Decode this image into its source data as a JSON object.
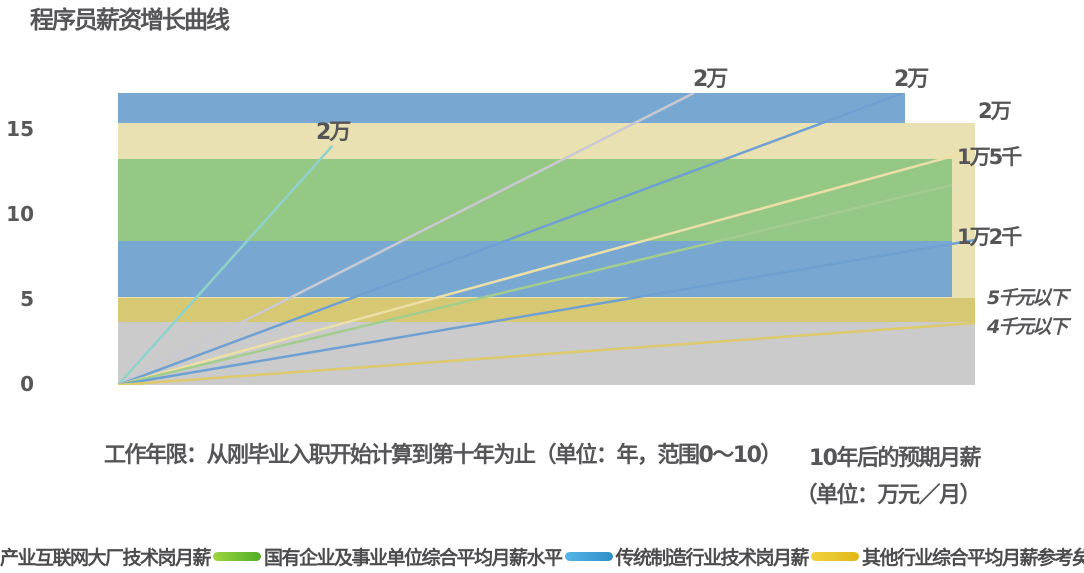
{
  "title": "程序员薪资增长曲线",
  "y_axis": {
    "ticks": [
      "15",
      "10",
      "5",
      "0"
    ]
  },
  "x_axis": {
    "label_long": "工作年限：从刚毕业入职开始计算到第十年为止（单位：年，范围0～10）",
    "right_label_line1": "10年后的预期月薪",
    "right_label_line2": "（单位：万元／月）"
  },
  "point_labels": [
    {
      "text": "2万"
    },
    {
      "text": "2万"
    },
    {
      "text": "2万"
    }
  ],
  "band_labels": [
    {
      "text": "2万"
    },
    {
      "text": "1万5千"
    },
    {
      "text": "1万2千"
    },
    {
      "text": "5千元以下"
    },
    {
      "text": "4千元以下"
    }
  ],
  "legend": {
    "items": [
      {
        "label": "产业互联网大厂技术岗月薪",
        "color_from": "#9ed63f",
        "color_to": "#4fae27"
      },
      {
        "label": "国有企业及事业单位综合平均月薪水平",
        "color_from": "#56b6e8",
        "color_to": "#2e8fc7"
      },
      {
        "label": "传统制造行业技术岗月薪",
        "color_from": "#f2d23d",
        "color_to": "#e0b81a"
      },
      {
        "label": "其他行业综合平均月薪参考矣",
        "color_from": "#d8d8d8",
        "color_to": "#bfbfbf"
      }
    ]
  },
  "colors": {
    "text_dark": "#555558",
    "band_blue": "#78a8d2",
    "band_cream": "#e9e1b1",
    "band_green": "#95c785",
    "band_dark_yellow": "#d7c874",
    "band_gray": "#cbcbcb"
  },
  "chart_data": {
    "type": "line",
    "title": "程序员薪资增长曲线",
    "xlabel": "工作年限：从刚毕业入职开始计算到第十年为止（单位：年，范围0～10）",
    "ylabel": "",
    "xlim": [
      0,
      10
    ],
    "ylim": [
      0,
      17
    ],
    "yticks": [
      0,
      5,
      10,
      15
    ],
    "grid": false,
    "legend_position": "bottom",
    "bands": [
      {
        "name": "cream-band",
        "color": "#e9e1b1",
        "x": [
          0,
          10
        ],
        "y": [
          5.05,
          15.25
        ],
        "label": "1万5千"
      },
      {
        "name": "top-blue-band",
        "color": "#78a8d2",
        "x": [
          0,
          9.18
        ],
        "y": [
          15.25,
          17.0
        ],
        "label": "2万"
      },
      {
        "name": "green-band",
        "color": "#95c785",
        "x": [
          0,
          9.73
        ],
        "y": [
          8.38,
          13.17
        ],
        "label": "1万2千"
      },
      {
        "name": "mid-blue-band",
        "color": "#78a8d2",
        "x": [
          0,
          9.73
        ],
        "y": [
          5.12,
          8.38
        ],
        "label": ""
      },
      {
        "name": "dark-yellow-band",
        "color": "#d7c874",
        "x": [
          0,
          10
        ],
        "y": [
          3.67,
          5.05
        ],
        "label": "5千元以下"
      },
      {
        "name": "gray-band",
        "color": "#cbcbcb",
        "x": [
          0,
          10
        ],
        "y": [
          0,
          3.67
        ],
        "label": "4千元以下"
      }
    ],
    "lines": [
      {
        "name": "teal-line",
        "color": "#8fd2c9",
        "from": [
          0,
          0
        ],
        "to": [
          2.5,
          13.92
        ],
        "end_label": "2万"
      },
      {
        "name": "silver-line",
        "color": "#c9c9d1",
        "from": [
          0,
          0
        ],
        "to": [
          6.72,
          17.0
        ],
        "end_label": "2万"
      },
      {
        "name": "blue-line",
        "color": "#6fa0d2",
        "from": [
          0,
          0
        ],
        "to": [
          9.16,
          17.0
        ],
        "end_label": "2万"
      },
      {
        "name": "cream-line",
        "color": "#ecdfa7",
        "from": [
          0,
          0
        ],
        "to": [
          10,
          13.68
        ],
        "end_label": ""
      },
      {
        "name": "green-line",
        "color": "#a3cd8e",
        "from": [
          0,
          0
        ],
        "to": [
          9.73,
          11.64
        ],
        "end_label": ""
      },
      {
        "name": "blue-line-2",
        "color": "#6fa0d2",
        "from": [
          0,
          0
        ],
        "to": [
          10,
          8.44
        ],
        "end_label": ""
      },
      {
        "name": "yellow-line",
        "color": "#ddca6b",
        "from": [
          0,
          0
        ],
        "to": [
          10,
          3.61
        ],
        "end_label": ""
      }
    ]
  }
}
